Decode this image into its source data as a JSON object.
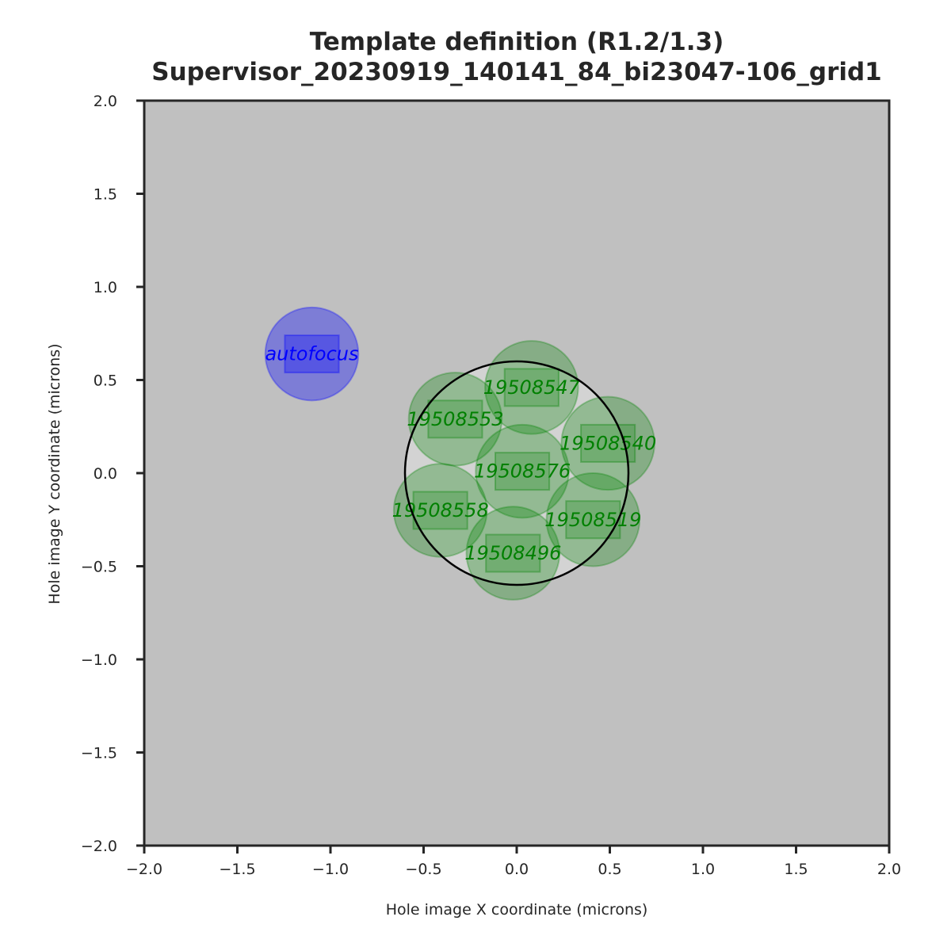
{
  "chart_data": {
    "type": "scatter",
    "title": [
      "Template definition (R1.2/1.3)",
      "Supervisor_20230919_140141_84_bi23047-106_grid1"
    ],
    "xlabel": "Hole image X coordinate (microns)",
    "ylabel": "Hole image Y coordinate (microns)",
    "xlim": [
      -2.0,
      2.0
    ],
    "ylim": [
      -2.0,
      2.0
    ],
    "xticks": [
      -2.0,
      -1.5,
      -1.0,
      -0.5,
      0.0,
      0.5,
      1.0,
      1.5,
      2.0
    ],
    "yticks": [
      -2.0,
      -1.5,
      -1.0,
      -0.5,
      0.0,
      0.5,
      1.0,
      1.5,
      2.0
    ],
    "xtick_labels": [
      "−2.0",
      "−1.5",
      "−1.0",
      "−0.5",
      "0.0",
      "0.5",
      "1.0",
      "1.5",
      "2.0"
    ],
    "ytick_labels": [
      "−2.0",
      "−1.5",
      "−1.0",
      "−0.5",
      "0.0",
      "0.5",
      "1.0",
      "1.5",
      "2.0"
    ],
    "background_color": "#c0c0c0",
    "hole": {
      "x": 0.0,
      "y": 0.0,
      "radius": 0.6,
      "fill": "#d3d3d3",
      "stroke": "#000000"
    },
    "shot_radius": 0.25,
    "shot_box": {
      "width": 0.29,
      "height": 0.2
    },
    "autofocus": {
      "label": "autofocus",
      "x": -1.1,
      "y": 0.64,
      "color": "#0000ff"
    },
    "exposures": {
      "color": "#008000",
      "points": [
        {
          "label": "19508547",
          "x": 0.08,
          "y": 0.46
        },
        {
          "label": "19508553",
          "x": -0.33,
          "y": 0.29
        },
        {
          "label": "19508540",
          "x": 0.49,
          "y": 0.16
        },
        {
          "label": "19508576",
          "x": 0.03,
          "y": 0.01
        },
        {
          "label": "19508558",
          "x": -0.41,
          "y": -0.2
        },
        {
          "label": "19508519",
          "x": 0.41,
          "y": -0.25
        },
        {
          "label": "19508496",
          "x": -0.02,
          "y": -0.43
        }
      ]
    }
  }
}
